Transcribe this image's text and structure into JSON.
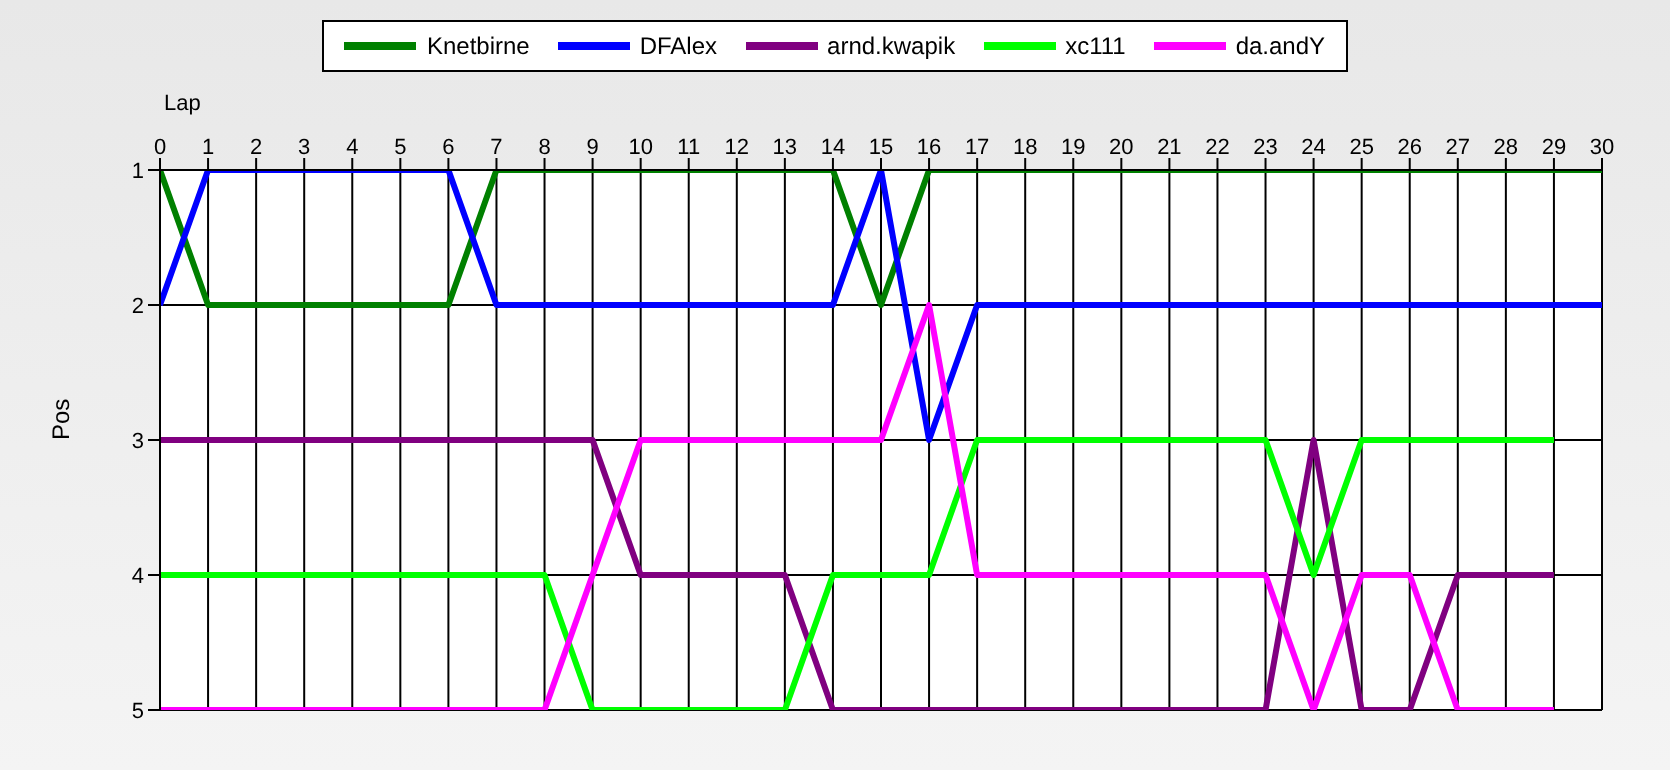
{
  "chart_data": {
    "type": "line",
    "xlabel": "Lap",
    "ylabel": "Pos",
    "x": [
      0,
      1,
      2,
      3,
      4,
      5,
      6,
      7,
      8,
      9,
      10,
      11,
      12,
      13,
      14,
      15,
      16,
      17,
      18,
      19,
      20,
      21,
      22,
      23,
      24,
      25,
      26,
      27,
      28,
      29,
      30
    ],
    "series": [
      {
        "name": "Knetbirne",
        "color": "#008000",
        "values": [
          1,
          2,
          2,
          2,
          2,
          2,
          2,
          1,
          1,
          1,
          1,
          1,
          1,
          1,
          1,
          2,
          1,
          1,
          1,
          1,
          1,
          1,
          1,
          1,
          1,
          1,
          1,
          1,
          1,
          1,
          1
        ]
      },
      {
        "name": "DFAlex",
        "color": "#0000ff",
        "values": [
          2,
          1,
          1,
          1,
          1,
          1,
          1,
          2,
          2,
          2,
          2,
          2,
          2,
          2,
          2,
          1,
          3,
          2,
          2,
          2,
          2,
          2,
          2,
          2,
          2,
          2,
          2,
          2,
          2,
          2,
          2
        ]
      },
      {
        "name": "arnd.kwapik",
        "color": "#800080",
        "values": [
          3,
          3,
          3,
          3,
          3,
          3,
          3,
          3,
          3,
          3,
          4,
          4,
          4,
          4,
          5,
          5,
          5,
          5,
          5,
          5,
          5,
          5,
          5,
          5,
          3,
          5,
          5,
          4,
          4,
          4,
          null
        ]
      },
      {
        "name": "xc111",
        "color": "#00ff00",
        "values": [
          4,
          4,
          4,
          4,
          4,
          4,
          4,
          4,
          4,
          5,
          5,
          5,
          5,
          5,
          4,
          4,
          4,
          3,
          3,
          3,
          3,
          3,
          3,
          3,
          4,
          3,
          3,
          3,
          3,
          3,
          null
        ]
      },
      {
        "name": "da.andY",
        "color": "#ff00ff",
        "values": [
          5,
          5,
          5,
          5,
          5,
          5,
          5,
          5,
          5,
          4,
          3,
          3,
          3,
          3,
          3,
          3,
          2,
          4,
          4,
          4,
          4,
          4,
          4,
          4,
          5,
          4,
          4,
          5,
          5,
          5,
          null
        ]
      }
    ],
    "xlim": [
      0,
      30
    ],
    "xticks": [
      0,
      1,
      2,
      3,
      4,
      5,
      6,
      7,
      8,
      9,
      10,
      11,
      12,
      13,
      14,
      15,
      16,
      17,
      18,
      19,
      20,
      21,
      22,
      23,
      24,
      25,
      26,
      27,
      28,
      29,
      30
    ],
    "ylim": [
      5,
      1
    ],
    "yticks": [
      1,
      2,
      3,
      4,
      5
    ],
    "grid": true,
    "legend": "top",
    "marker": "none",
    "line_style": "solid"
  }
}
